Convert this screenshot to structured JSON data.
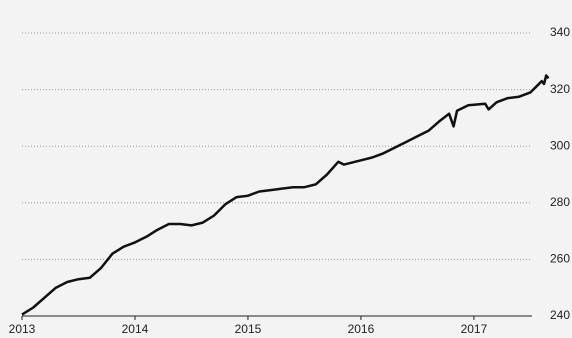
{
  "chart_data": {
    "type": "line",
    "x": [
      2013.0,
      2013.1,
      2013.2,
      2013.3,
      2013.4,
      2013.5,
      2013.6,
      2013.7,
      2013.8,
      2013.9,
      2014.0,
      2014.1,
      2014.2,
      2014.3,
      2014.4,
      2014.5,
      2014.6,
      2014.7,
      2014.8,
      2014.9,
      2015.0,
      2015.1,
      2015.2,
      2015.3,
      2015.4,
      2015.5,
      2015.6,
      2015.7,
      2015.8,
      2015.85,
      2016.0,
      2016.1,
      2016.2,
      2016.3,
      2016.4,
      2016.5,
      2016.6,
      2016.7,
      2016.78,
      2016.82,
      2016.85,
      2016.95,
      2017.1,
      2017.13,
      2017.2,
      2017.3,
      2017.4,
      2017.5,
      2017.55,
      2017.6,
      2017.62,
      2017.64,
      2017.66
    ],
    "series": [
      {
        "color": "#111111",
        "values": [
          240.5,
          243,
          246.5,
          250,
          252,
          253,
          253.5,
          257,
          262,
          264.5,
          266,
          268,
          270.5,
          272.5,
          272.5,
          272,
          273,
          275.5,
          279.5,
          282,
          282.5,
          284,
          284.5,
          285,
          285.5,
          285.5,
          286.5,
          290,
          294.5,
          293.5,
          295,
          296,
          297.5,
          299.5,
          301.5,
          303.5,
          305.5,
          309,
          311.5,
          307,
          312.5,
          314.5,
          315,
          313,
          315.5,
          317,
          317.5,
          319,
          321,
          323,
          322,
          325,
          324
        ]
      }
    ],
    "xlim": [
      2013,
      2017.7
    ],
    "xticks": [
      2013,
      2014,
      2015,
      2016,
      2017
    ],
    "ylim": [
      240,
      340
    ],
    "yticks": [
      240,
      260,
      280,
      300,
      320,
      340
    ],
    "grid": true
  }
}
